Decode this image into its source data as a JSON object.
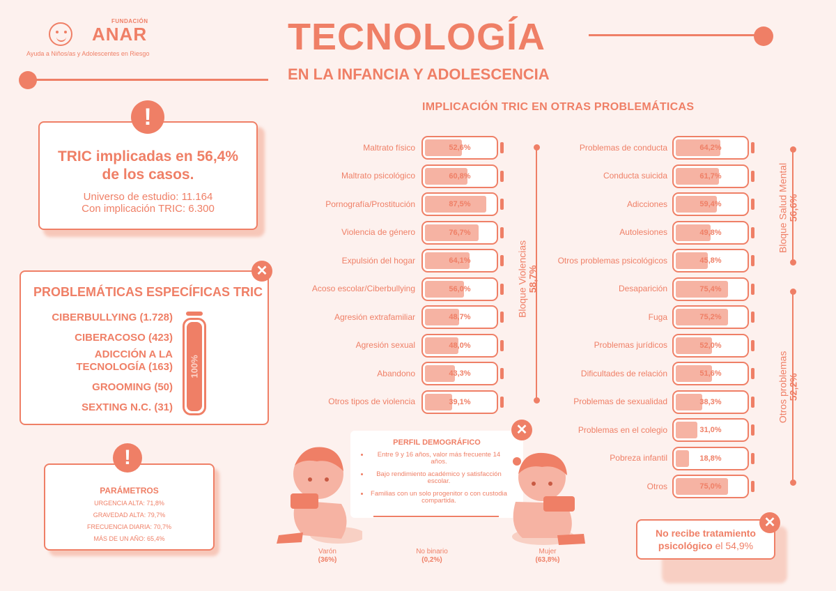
{
  "logo": {
    "foundation": "FUNDACIÓN",
    "name": "ANAR",
    "tagline": "Ayuda a Niños/as y Adolescentes en Riesgo"
  },
  "header": {
    "title": "TECNOLOGÍA",
    "subtitle": "EN LA INFANCIA Y ADOLESCENCIA"
  },
  "tric": {
    "headline_1": "TRIC implicadas en 56,4%",
    "headline_2": "de los casos.",
    "universe": "Universo de estudio: 11.164",
    "with_tric": "Con implicación TRIC: 6.300"
  },
  "specific": {
    "title": "PROBLEMÁTICAS ESPECÍFICAS TRIC",
    "items": [
      "CIBERBULLYING (1.728)",
      "CIBERACOSO (423)",
      "ADICCIÓN A LA",
      "TECNOLOGÍA (163)",
      "GROOMING (50)",
      "SEXTING N.C. (31)"
    ],
    "battery_label": "100%",
    "battery_level": 1.0
  },
  "params": {
    "title": "PARÁMETROS",
    "lines": [
      "URGENCIA ALTA: 71,8%",
      "GRAVEDAD ALTA: 79,7%",
      "FRECUENCIA DIARIA: 70,7%",
      "MÁS DE UN AÑO: 65,4%"
    ]
  },
  "section_title": "IMPLICACIÓN TRIC EN OTRAS PROBLEMÁTICAS",
  "left_bars": [
    {
      "label": "Maltrato físico",
      "value": 52.6,
      "text": "52,6%"
    },
    {
      "label": "Maltrato psicológico",
      "value": 60.8,
      "text": "60,8%"
    },
    {
      "label": "Pornografía/Prostitución",
      "value": 87.5,
      "text": "87,5%"
    },
    {
      "label": "Violencia de género",
      "value": 76.7,
      "text": "76,7%"
    },
    {
      "label": "Expulsión del hogar",
      "value": 64.1,
      "text": "64,1%"
    },
    {
      "label": "Acoso escolar/Ciberbullying",
      "value": 56.0,
      "text": "56,0%"
    },
    {
      "label": "Agresión extrafamiliar",
      "value": 48.7,
      "text": "48,7%"
    },
    {
      "label": "Agresión sexual",
      "value": 48.0,
      "text": "48,0%"
    },
    {
      "label": "Abandono",
      "value": 43.3,
      "text": "43,3%"
    },
    {
      "label": "Otros tipos de violencia",
      "value": 39.1,
      "text": "39,1%"
    }
  ],
  "right_bars": [
    {
      "label": "Problemas de conducta",
      "value": 64.2,
      "text": "64,2%"
    },
    {
      "label": "Conducta suicida",
      "value": 61.7,
      "text": "61,7%"
    },
    {
      "label": "Adicciones",
      "value": 59.4,
      "text": "59,4%"
    },
    {
      "label": "Autolesiones",
      "value": 49.8,
      "text": "49,8%"
    },
    {
      "label": "Otros problemas psicológicos",
      "value": 45.8,
      "text": "45,8%"
    },
    {
      "label": "Desaparición",
      "value": 75.4,
      "text": "75,4%"
    },
    {
      "label": "Fuga",
      "value": 75.2,
      "text": "75,2%"
    },
    {
      "label": "Problemas jurídicos",
      "value": 52.0,
      "text": "52,0%"
    },
    {
      "label": "Dificultades de relación",
      "value": 51.6,
      "text": "51,6%"
    },
    {
      "label": "Problemas de sexualidad",
      "value": 38.3,
      "text": "38,3%"
    },
    {
      "label": "Problemas en el colegio",
      "value": 31.0,
      "text": "31,0%"
    },
    {
      "label": "Pobreza infantil",
      "value": 18.8,
      "text": "18,8%"
    },
    {
      "label": "Otros",
      "value": 75.0,
      "text": "75,0%"
    }
  ],
  "blocks": {
    "violencias": {
      "label": "Bloque Violencias",
      "value": "58,7%"
    },
    "salud_mental": {
      "label": "Bloque Salud Mental",
      "value": "56,6%"
    },
    "otros": {
      "label": "Otros problemas",
      "value": "52,2%"
    }
  },
  "demographic": {
    "title": "PERFIL DEMOGRÁFICO",
    "bullets": [
      "Entre 9 y 16 años, valor más frecuente 14 años.",
      "Bajo rendimiento académico y satisfacción escolar.",
      "Familias con un solo progenitor o con custodia compartida."
    ],
    "male": {
      "label": "Varón",
      "value": "(36%)"
    },
    "nonbinary": {
      "label": "No binario",
      "value": "(0,2%)"
    },
    "female": {
      "label": "Mujer",
      "value": "(63,8%)"
    }
  },
  "no_treatment": {
    "bold": "No recibe tratamiento psicológico",
    "rest": " el 54,9%"
  }
}
